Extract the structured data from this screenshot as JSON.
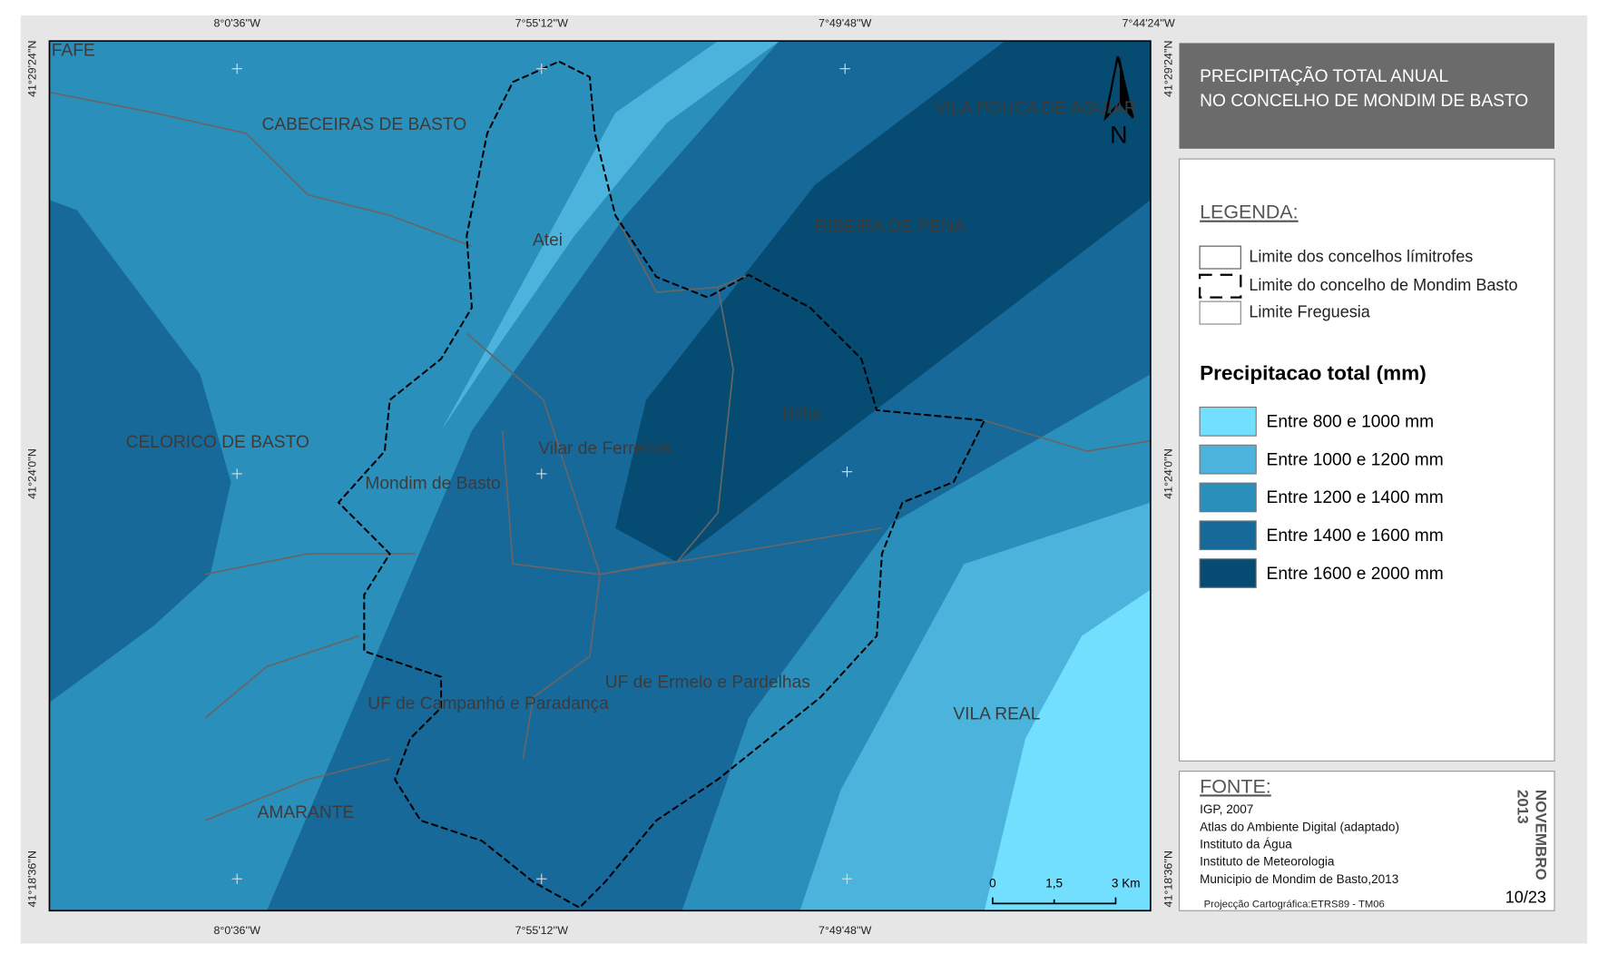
{
  "title": [
    "PRECIPITAÇÃO TOTAL ANUAL",
    "NO CONCELHO DE MONDIM DE BASTO"
  ],
  "legend": {
    "heading": "LEGENDA:",
    "boundaries": [
      "Limite dos concelhos límitrofes",
      "Limite do concelho de Mondim Basto",
      "Limite Freguesia"
    ],
    "precip_title": "Precipitacao total (mm)",
    "classes": [
      {
        "label": "Entre 800 e 1000 mm",
        "color": "#73dfff"
      },
      {
        "label": "Entre 1000 e 1200 mm",
        "color": "#4cb4dc"
      },
      {
        "label": "Entre 1200 e 1400 mm",
        "color": "#2b8fbc"
      },
      {
        "label": "Entre 1400 e 1600 mm",
        "color": "#17699a"
      },
      {
        "label": "Entre 1600 e 2000 mm",
        "color": "#064b72"
      }
    ]
  },
  "source": {
    "heading": "FONTE:",
    "lines": [
      "IGP, 2007",
      "Atlas do Ambiente Digital (adaptado)",
      "Instituto da Água",
      "Instituto de Meteorologia",
      "Municipio de Mondim de Basto,2013"
    ],
    "projection": "Projecção Cartográfica:ETRS89 - TM06"
  },
  "date": [
    "NOVEMBRO",
    "2013"
  ],
  "page": "10/23",
  "coords": {
    "top": [
      "8°0'36''W",
      "7°55'12''W",
      "7°49'48''W",
      "7°44'24''W"
    ],
    "bottom": [
      "8°0'36''W",
      "7°55'12''W",
      "7°49'48''W"
    ],
    "left": [
      "41°29'24''N",
      "41°24'0''N",
      "41°18'36''N"
    ],
    "right": [
      "41°29'24''N",
      "41°24'0''N",
      "41°18'36''N"
    ]
  },
  "places": [
    "FAFE",
    "CABECEIRAS DE BASTO",
    "Atei",
    "VILA POUCA DE AGUIAR",
    "RIBEIRA DE PENA",
    "CELORICO DE BASTO",
    "Vilar de Ferreiros",
    "Bilhó",
    "Mondim de Basto",
    "UF de Ermelo e Pardelhas",
    "UF de Campanhó e Paradança",
    "VILA REAL",
    "AMARANTE"
  ],
  "scale_bar": [
    "0",
    "1,5",
    "3 Km"
  ],
  "north": "N"
}
